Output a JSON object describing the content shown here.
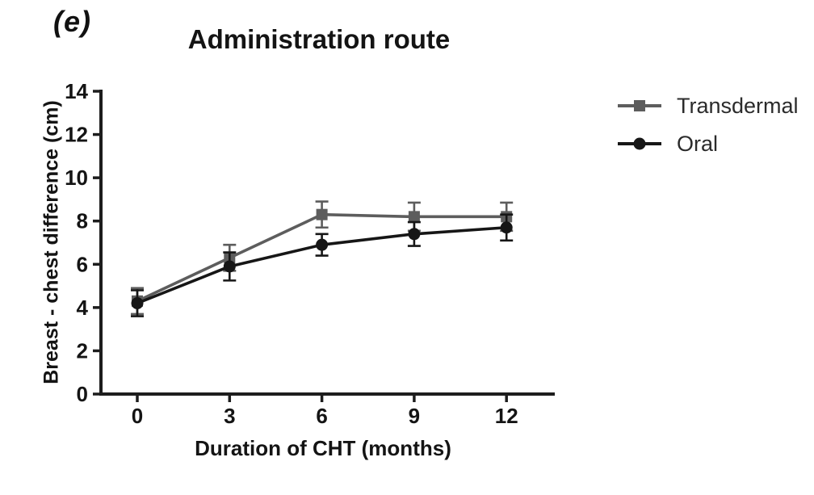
{
  "panel_label": "(e)",
  "chart_data": {
    "type": "line",
    "title": "Administration route",
    "xlabel": "Duration of CHT (months)",
    "ylabel": "Breast - chest difference (cm)",
    "x": [
      0,
      3,
      6,
      9,
      12
    ],
    "x_ticks": [
      "0",
      "3",
      "6",
      "9",
      "12"
    ],
    "y_ticks": [
      "0",
      "2",
      "4",
      "6",
      "8",
      "10",
      "12",
      "14"
    ],
    "xlim": [
      0,
      12
    ],
    "ylim": [
      0,
      14
    ],
    "grid": false,
    "error_bars": true,
    "legend_position": "right",
    "axis_color": "#1d1d1d",
    "series": [
      {
        "name": "Transdermal",
        "marker": "square",
        "color": "#5d5d5d",
        "values": [
          4.3,
          6.3,
          8.3,
          8.2,
          8.2
        ],
        "errors": [
          0.6,
          0.6,
          0.6,
          0.65,
          0.65
        ]
      },
      {
        "name": "Oral",
        "marker": "circle",
        "color": "#161616",
        "values": [
          4.2,
          5.9,
          6.9,
          7.4,
          7.7
        ],
        "errors": [
          0.6,
          0.65,
          0.5,
          0.55,
          0.6
        ]
      }
    ]
  }
}
